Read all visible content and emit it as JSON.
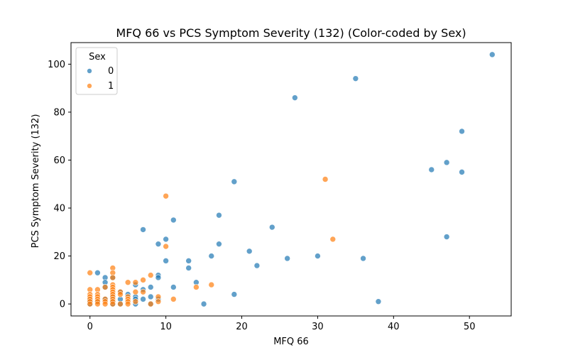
{
  "chart_data": {
    "type": "scatter",
    "title": "MFQ 66 vs PCS Symptom Severity (132) (Color-coded by Sex)",
    "xlabel": "MFQ 66",
    "ylabel": "PCS Symptom Severity (132)",
    "xlim": [
      -2.5,
      55.5
    ],
    "ylim": [
      -5,
      109
    ],
    "xticks": [
      0,
      10,
      20,
      30,
      40,
      50
    ],
    "yticks": [
      0,
      20,
      40,
      60,
      80,
      100
    ],
    "grid": false,
    "legend": {
      "title": "Sex",
      "placement": "top-left",
      "entries": [
        {
          "label": "0",
          "color": "#1f77b4"
        },
        {
          "label": "1",
          "color": "#ff7f0e"
        }
      ]
    },
    "series": [
      {
        "name": "0",
        "color": "#1f77b4",
        "points": [
          [
            53,
            104
          ],
          [
            35,
            94
          ],
          [
            27,
            86
          ],
          [
            49,
            72
          ],
          [
            47,
            59
          ],
          [
            45,
            56
          ],
          [
            49,
            55
          ],
          [
            19,
            51
          ],
          [
            47,
            28
          ],
          [
            11,
            35
          ],
          [
            17,
            37
          ],
          [
            24,
            32
          ],
          [
            7,
            31
          ],
          [
            10,
            27
          ],
          [
            9,
            25
          ],
          [
            17,
            25
          ],
          [
            21,
            22
          ],
          [
            16,
            20
          ],
          [
            30,
            20
          ],
          [
            26,
            19
          ],
          [
            36,
            19
          ],
          [
            13,
            18
          ],
          [
            10,
            18
          ],
          [
            22,
            16
          ],
          [
            13,
            15
          ],
          [
            1,
            13
          ],
          [
            9,
            12
          ],
          [
            9,
            11
          ],
          [
            2,
            11
          ],
          [
            3,
            11
          ],
          [
            2,
            9
          ],
          [
            14,
            9
          ],
          [
            6,
            8
          ],
          [
            11,
            7
          ],
          [
            8,
            7
          ],
          [
            2,
            7
          ],
          [
            7,
            6
          ],
          [
            4,
            5
          ],
          [
            5,
            4
          ],
          [
            19,
            4
          ],
          [
            6,
            3
          ],
          [
            8,
            3
          ],
          [
            9,
            2
          ],
          [
            6,
            2
          ],
          [
            7,
            2
          ],
          [
            4,
            2
          ],
          [
            2,
            2
          ],
          [
            0,
            2
          ],
          [
            3,
            1
          ],
          [
            38,
            1
          ],
          [
            15,
            0
          ],
          [
            8,
            0
          ],
          [
            6,
            0
          ],
          [
            4,
            0
          ],
          [
            3,
            0
          ],
          [
            0,
            0
          ],
          [
            1,
            1
          ],
          [
            0,
            1
          ],
          [
            3,
            3
          ]
        ]
      },
      {
        "name": "1",
        "color": "#ff7f0e",
        "points": [
          [
            31,
            52
          ],
          [
            10,
            45
          ],
          [
            32,
            27
          ],
          [
            10,
            24
          ],
          [
            0,
            13
          ],
          [
            3,
            15
          ],
          [
            3,
            13
          ],
          [
            8,
            12
          ],
          [
            3,
            11
          ],
          [
            7,
            10
          ],
          [
            5,
            9
          ],
          [
            6,
            9
          ],
          [
            3,
            8
          ],
          [
            16,
            8
          ],
          [
            2,
            7
          ],
          [
            14,
            7
          ],
          [
            3,
            7
          ],
          [
            0,
            6
          ],
          [
            1,
            6
          ],
          [
            3,
            6
          ],
          [
            7,
            5
          ],
          [
            6,
            5
          ],
          [
            3,
            5
          ],
          [
            4,
            5
          ],
          [
            0,
            4
          ],
          [
            1,
            4
          ],
          [
            3,
            4
          ],
          [
            4,
            4
          ],
          [
            5,
            3
          ],
          [
            9,
            3
          ],
          [
            0,
            3
          ],
          [
            1,
            3
          ],
          [
            3,
            3
          ],
          [
            11,
            2
          ],
          [
            0,
            2
          ],
          [
            2,
            2
          ],
          [
            3,
            2
          ],
          [
            5,
            2
          ],
          [
            1,
            2
          ],
          [
            0,
            1
          ],
          [
            1,
            1
          ],
          [
            2,
            1
          ],
          [
            3,
            1
          ],
          [
            5,
            1
          ],
          [
            9,
            1
          ],
          [
            0,
            0
          ],
          [
            1,
            0
          ],
          [
            2,
            0
          ],
          [
            3,
            0
          ],
          [
            4,
            0
          ],
          [
            5,
            0
          ],
          [
            8,
            0
          ],
          [
            6,
            1
          ]
        ]
      }
    ]
  }
}
